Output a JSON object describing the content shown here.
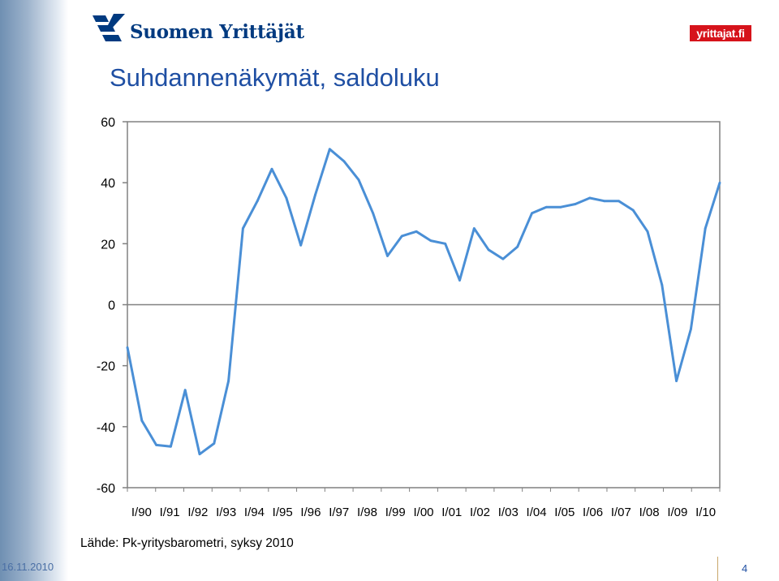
{
  "header": {
    "logo_text": "Suomen Yrittäjät",
    "brand_badge": "yrittajat.fi"
  },
  "slide": {
    "title": "Suhdannenäkymät, saldoluku",
    "source": "Lähde: Pk-yritysbarometri, syksy 2010",
    "date": "16.11.2010",
    "page": "4"
  },
  "chart_data": {
    "type": "line",
    "title": "",
    "xlabel": "",
    "ylabel": "",
    "ylim": [
      -60,
      60
    ],
    "yticks": [
      60,
      40,
      20,
      0,
      -20,
      -40,
      -60
    ],
    "xticks": [
      "I/90",
      "I/91",
      "I/92",
      "I/93",
      "I/94",
      "I/95",
      "I/96",
      "I/97",
      "I/98",
      "I/99",
      "I/00",
      "I/01",
      "I/02",
      "I/03",
      "I/04",
      "I/05",
      "I/06",
      "I/07",
      "I/08",
      "I/09",
      "I/10"
    ],
    "grid": false,
    "zero_line": true,
    "color": "#4a8fd6",
    "values": [
      -14,
      -38,
      -46,
      -46.5,
      -28,
      -49,
      -45.5,
      -25,
      25,
      34,
      44.5,
      35,
      19.5,
      36,
      51,
      47,
      41,
      30,
      16,
      22.5,
      24,
      21,
      20,
      8,
      25,
      18,
      15,
      19,
      30,
      32,
      32,
      33,
      35,
      34,
      34,
      31,
      24,
      6.5,
      -25,
      -8,
      25,
      40
    ]
  }
}
